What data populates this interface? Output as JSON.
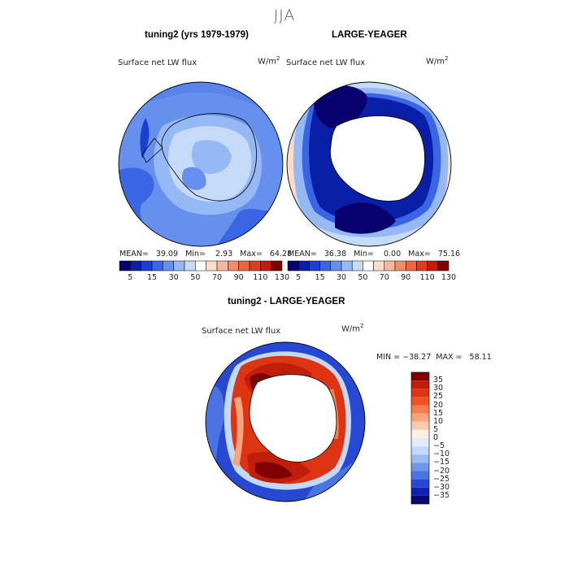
{
  "season": "JJA",
  "panels": {
    "left": {
      "title": "tuning2 (yrs 1979-1979)",
      "variable": "Surface net LW flux",
      "units_base": "W/m",
      "units_exp": "2",
      "stats": "MEAN=   39.09   Min=    2.93   Max=   64.28"
    },
    "right": {
      "title": "LARGE-YEAGER",
      "variable": "Surface net LW flux",
      "units_base": "W/m",
      "units_exp": "2",
      "stats": "MEAN=   36.38   Min=    0.00   Max=   75.16"
    },
    "diff": {
      "title": "tuning2 - LARGE-YEAGER",
      "variable": "Surface net LW flux",
      "units_base": "W/m",
      "units_exp": "2",
      "stats": "MIN = −38.27  MAX =   58.11"
    }
  },
  "colorbar_top": {
    "tick_labels": [
      "5",
      "15",
      "30",
      "50",
      "70",
      "90",
      "110",
      "130"
    ],
    "colors": [
      "#08006e",
      "#0a1fa8",
      "#1a40d0",
      "#3a66e6",
      "#6590ee",
      "#96b8f4",
      "#c6dbf8",
      "#ffffff",
      "#fbddc8",
      "#f7b79a",
      "#f28d6c",
      "#ea6543",
      "#db3f1d",
      "#c01d0b",
      "#800000"
    ]
  },
  "colorbar_diff": {
    "tick_labels": [
      "35",
      "30",
      "25",
      "20",
      "15",
      "10",
      "5",
      "0",
      "−5",
      "−10",
      "−15",
      "−20",
      "−25",
      "−30",
      "−35"
    ],
    "colors": [
      "#800000",
      "#c01d0b",
      "#dd3414",
      "#ee5523",
      "#f57d4f",
      "#f8a47c",
      "#fbcbaf",
      "#fff0e4",
      "#e2ecfc",
      "#c4d9f7",
      "#9cbdf2",
      "#6e98ec",
      "#4a74e2",
      "#2648d2",
      "#0f22b4",
      "#060a78"
    ]
  }
}
